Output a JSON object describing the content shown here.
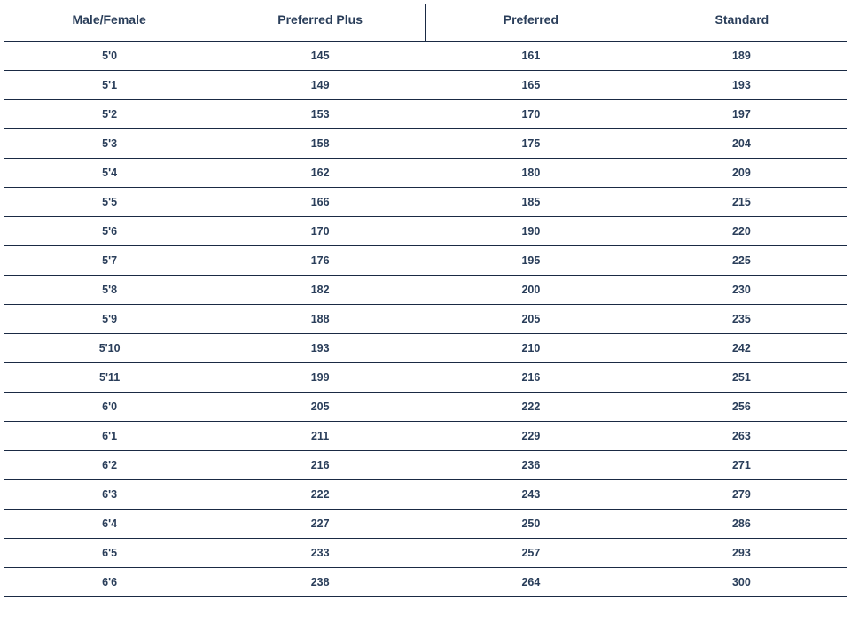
{
  "table": {
    "columns": [
      "Male/Female",
      "Preferred Plus",
      "Preferred",
      "Standard"
    ],
    "rows": [
      [
        "5'0",
        "145",
        "161",
        "189"
      ],
      [
        "5'1",
        "149",
        "165",
        "193"
      ],
      [
        "5'2",
        "153",
        "170",
        "197"
      ],
      [
        "5'3",
        "158",
        "175",
        "204"
      ],
      [
        "5'4",
        "162",
        "180",
        "209"
      ],
      [
        "5'5",
        "166",
        "185",
        "215"
      ],
      [
        "5'6",
        "170",
        "190",
        "220"
      ],
      [
        "5'7",
        "176",
        "195",
        "225"
      ],
      [
        "5'8",
        "182",
        "200",
        "230"
      ],
      [
        "5'9",
        "188",
        "205",
        "235"
      ],
      [
        "5'10",
        "193",
        "210",
        "242"
      ],
      [
        "5'11",
        "199",
        "216",
        "251"
      ],
      [
        "6'0",
        "205",
        "222",
        "256"
      ],
      [
        "6'1",
        "211",
        "229",
        "263"
      ],
      [
        "6'2",
        "216",
        "236",
        "271"
      ],
      [
        "6'3",
        "222",
        "243",
        "279"
      ],
      [
        "6'4",
        "227",
        "250",
        "286"
      ],
      [
        "6'5",
        "233",
        "257",
        "293"
      ],
      [
        "6'6",
        "238",
        "264",
        "300"
      ]
    ],
    "header_color": "#2a3e5a",
    "cell_color": "#2a3e5a",
    "border_color": "#1a2a44",
    "background_color": "#ffffff",
    "header_fontsize": 14,
    "cell_fontsize": 12.5,
    "font_weight": 700
  }
}
